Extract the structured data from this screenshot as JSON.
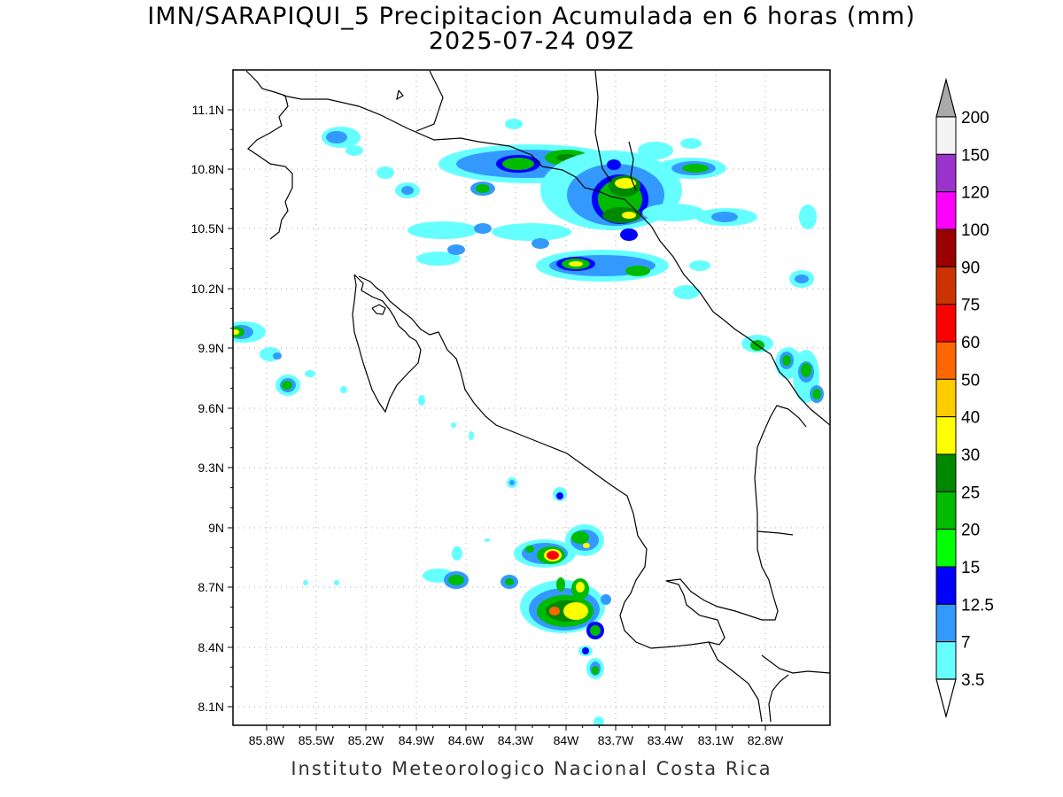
{
  "title": {
    "line1": "IMN/SARAPIQUI_5 Precipitacion Acumulada en 6 horas (mm)",
    "line2": "2025-07-24 09Z"
  },
  "footer": "Instituto Meteorologico Nacional Costa Rica",
  "axes": {
    "lat_labels": [
      "11.1N",
      "10.8N",
      "10.5N",
      "10.2N",
      "9.9N",
      "9.6N",
      "9.3N",
      "9N",
      "8.7N",
      "8.4N",
      "8.1N"
    ],
    "lon_labels": [
      "85.8W",
      "85.5W",
      "85.2W",
      "84.9W",
      "84.6W",
      "84.3W",
      "84W",
      "83.7W",
      "83.4W",
      "83.1W",
      "82.8W"
    ]
  },
  "colorbar": {
    "labels": [
      "200",
      "150",
      "120",
      "100",
      "90",
      "75",
      "60",
      "50",
      "40",
      "30",
      "25",
      "20",
      "15",
      "12.5",
      "7",
      "3.5"
    ],
    "colors": [
      "#f4f4f4",
      "#9933cc",
      "#ff00ff",
      "#990000",
      "#cc3300",
      "#ff0000",
      "#ff6600",
      "#ffcc00",
      "#ffff00",
      "#008800",
      "#00bb00",
      "#00ff00",
      "#0000ff",
      "#3399ff",
      "#66ffff"
    ],
    "top_arrow_color": "#aaaaaa",
    "bottom_arrow_color": "#ffffff"
  }
}
